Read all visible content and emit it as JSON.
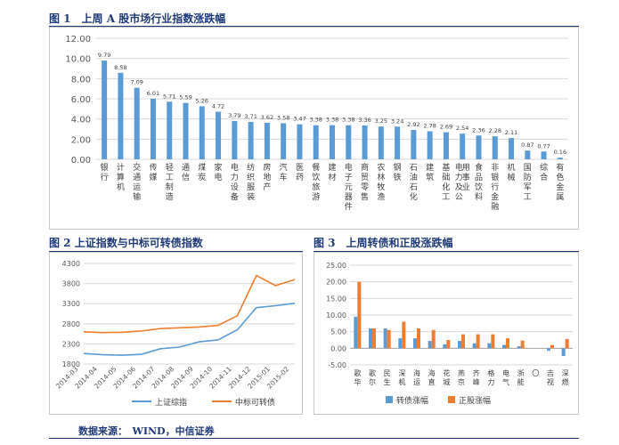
{
  "figure1": {
    "title": "图 1　上周 A 股市场行业指数涨跌幅",
    "chart_data": {
      "type": "bar",
      "color": "#5b9bd5",
      "ylim": [
        0,
        12
      ],
      "yticks": [
        "0.00",
        "2.00",
        "4.00",
        "6.00",
        "8.00",
        "10.00",
        "12.00"
      ],
      "categories": [
        "银行",
        "计算机",
        "交通运输",
        "传媒",
        "轻工制造",
        "通信",
        "煤炭",
        "家电",
        "电力设备",
        "纺织服装",
        "房地产",
        "汽车",
        "医药",
        "餐饮旅游",
        "建材",
        "电子元器件",
        "商贸零售",
        "农林牧渔",
        "钢铁",
        "石油石化",
        "建筑",
        "基础化工",
        "电力及公用事业",
        "食品饮料",
        "非银行金融",
        "机械",
        "国防军工",
        "综合",
        "有色金属"
      ],
      "values": [
        9.79,
        8.58,
        7.09,
        6.01,
        5.71,
        5.59,
        5.26,
        4.72,
        3.79,
        3.71,
        3.62,
        3.58,
        3.47,
        3.38,
        3.38,
        3.38,
        3.36,
        3.25,
        3.24,
        2.92,
        2.78,
        2.69,
        2.54,
        2.36,
        2.28,
        2.11,
        0.87,
        0.77,
        0.16
      ],
      "labels": [
        "9.79",
        "8.58",
        "7.09",
        "6.01",
        "5.71",
        "5.59",
        "5.26",
        "4.72",
        "3.79",
        "3.71",
        "3.62",
        "3.58",
        "3.47",
        "3.38",
        "3.38",
        "3.38",
        "3.36",
        "3.25",
        "3.24",
        "2.92",
        "2.78",
        "2.69",
        "2.54",
        "2.36",
        "2.28",
        "2.11",
        "0.87",
        "0.77",
        "0.16"
      ]
    }
  },
  "figure2": {
    "title": "图 2  上证指数与中标可转债指数",
    "chart_data": {
      "type": "line",
      "ylim": [
        1800,
        4300
      ],
      "yticks": [
        "1800",
        "2300",
        "2800",
        "3300",
        "3800",
        "4300"
      ],
      "x": [
        "2014-03",
        "2014-04",
        "2014-05",
        "2014-06",
        "2014-07",
        "2014-08",
        "2014-09",
        "2014-10",
        "2014-11",
        "2014-12",
        "2015-01",
        "2015-02"
      ],
      "series": [
        {
          "name": "上证综指",
          "color": "#5b9bd5",
          "values": [
            2060,
            2030,
            2020,
            2040,
            2180,
            2220,
            2350,
            2400,
            2650,
            3200,
            3250,
            3310
          ]
        },
        {
          "name": "中标可转债",
          "color": "#ed7d31",
          "values": [
            2600,
            2580,
            2590,
            2620,
            2680,
            2700,
            2720,
            2760,
            3000,
            4000,
            3750,
            3900
          ]
        }
      ]
    }
  },
  "figure3": {
    "title": "图 3　上周转债和正股涨跌幅",
    "chart_data": {
      "type": "bar",
      "ylim": [
        -5,
        25
      ],
      "yticks": [
        "-5.00",
        "0.00",
        "5.00",
        "10.00",
        "15.00",
        "20.00",
        "25.00"
      ],
      "categories": [
        "歌华",
        "歌尔",
        "民生",
        "深机",
        "海运",
        "海直",
        "花城",
        "燕京",
        "齐峰",
        "格力",
        "电气",
        "浙能",
        "〇",
        "吉视",
        "深燃"
      ],
      "series": [
        {
          "name": "转债涨幅",
          "color": "#5b9bd5",
          "values": [
            9.5,
            6,
            6,
            3,
            3,
            2.2,
            1.2,
            2.2,
            1.5,
            1.5,
            1,
            0.6,
            0,
            -0.7,
            -2.3
          ]
        },
        {
          "name": "正股涨幅",
          "color": "#ed7d31",
          "values": [
            20,
            6,
            5.5,
            8,
            6,
            5.5,
            2.5,
            4.2,
            4.2,
            4.2,
            3,
            2.3,
            0,
            1,
            2.8
          ]
        }
      ]
    }
  },
  "source": "数据来源：　WIND，中信证券"
}
